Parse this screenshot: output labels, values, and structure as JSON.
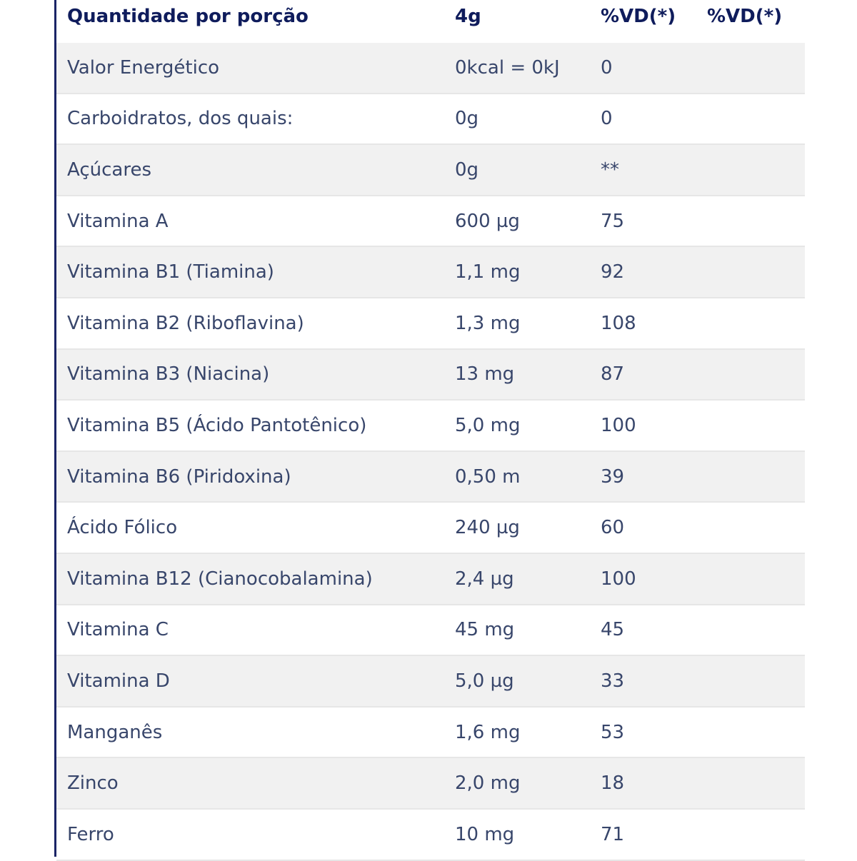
{
  "header": {
    "name": "Quantidade por porção",
    "amount": "4g",
    "vd1": "%VD(*)",
    "vd2": "%VD(*)"
  },
  "rows": [
    {
      "name": "Valor Energético",
      "amount": "0kcal = 0kJ",
      "vd": "0"
    },
    {
      "name": "Carboidratos, dos quais:",
      "amount": "0g",
      "vd": "0"
    },
    {
      "name": "Açúcares",
      "amount": "0g",
      "vd": "**"
    },
    {
      "name": "Vitamina A",
      "amount": "600 µg",
      "vd": "75"
    },
    {
      "name": "Vitamina B1 (Tiamina)",
      "amount": "1,1 mg",
      "vd": "92"
    },
    {
      "name": "Vitamina B2 (Riboflavina)",
      "amount": "1,3 mg",
      "vd": "108"
    },
    {
      "name": "Vitamina B3 (Niacina)",
      "amount": "13 mg",
      "vd": "87"
    },
    {
      "name": "Vitamina B5 (Ácido Pantotênico)",
      "amount": "5,0 mg",
      "vd": "100"
    },
    {
      "name": "Vitamina B6 (Piridoxina)",
      "amount": "0,50 m",
      "vd": "39"
    },
    {
      "name": "Ácido Fólico",
      "amount": "240 µg",
      "vd": "60"
    },
    {
      "name": "Vitamina B12 (Cianocobalamina)",
      "amount": "2,4 µg",
      "vd": "100"
    },
    {
      "name": "Vitamina C",
      "amount": "45 mg",
      "vd": "45"
    },
    {
      "name": "Vitamina D",
      "amount": "5,0 µg",
      "vd": "33"
    },
    {
      "name": "Manganês",
      "amount": "1,6 mg",
      "vd": "53"
    },
    {
      "name": "Zinco",
      "amount": "2,0 mg",
      "vd": "18"
    },
    {
      "name": "Ferro",
      "amount": "10 mg",
      "vd": "71"
    }
  ]
}
